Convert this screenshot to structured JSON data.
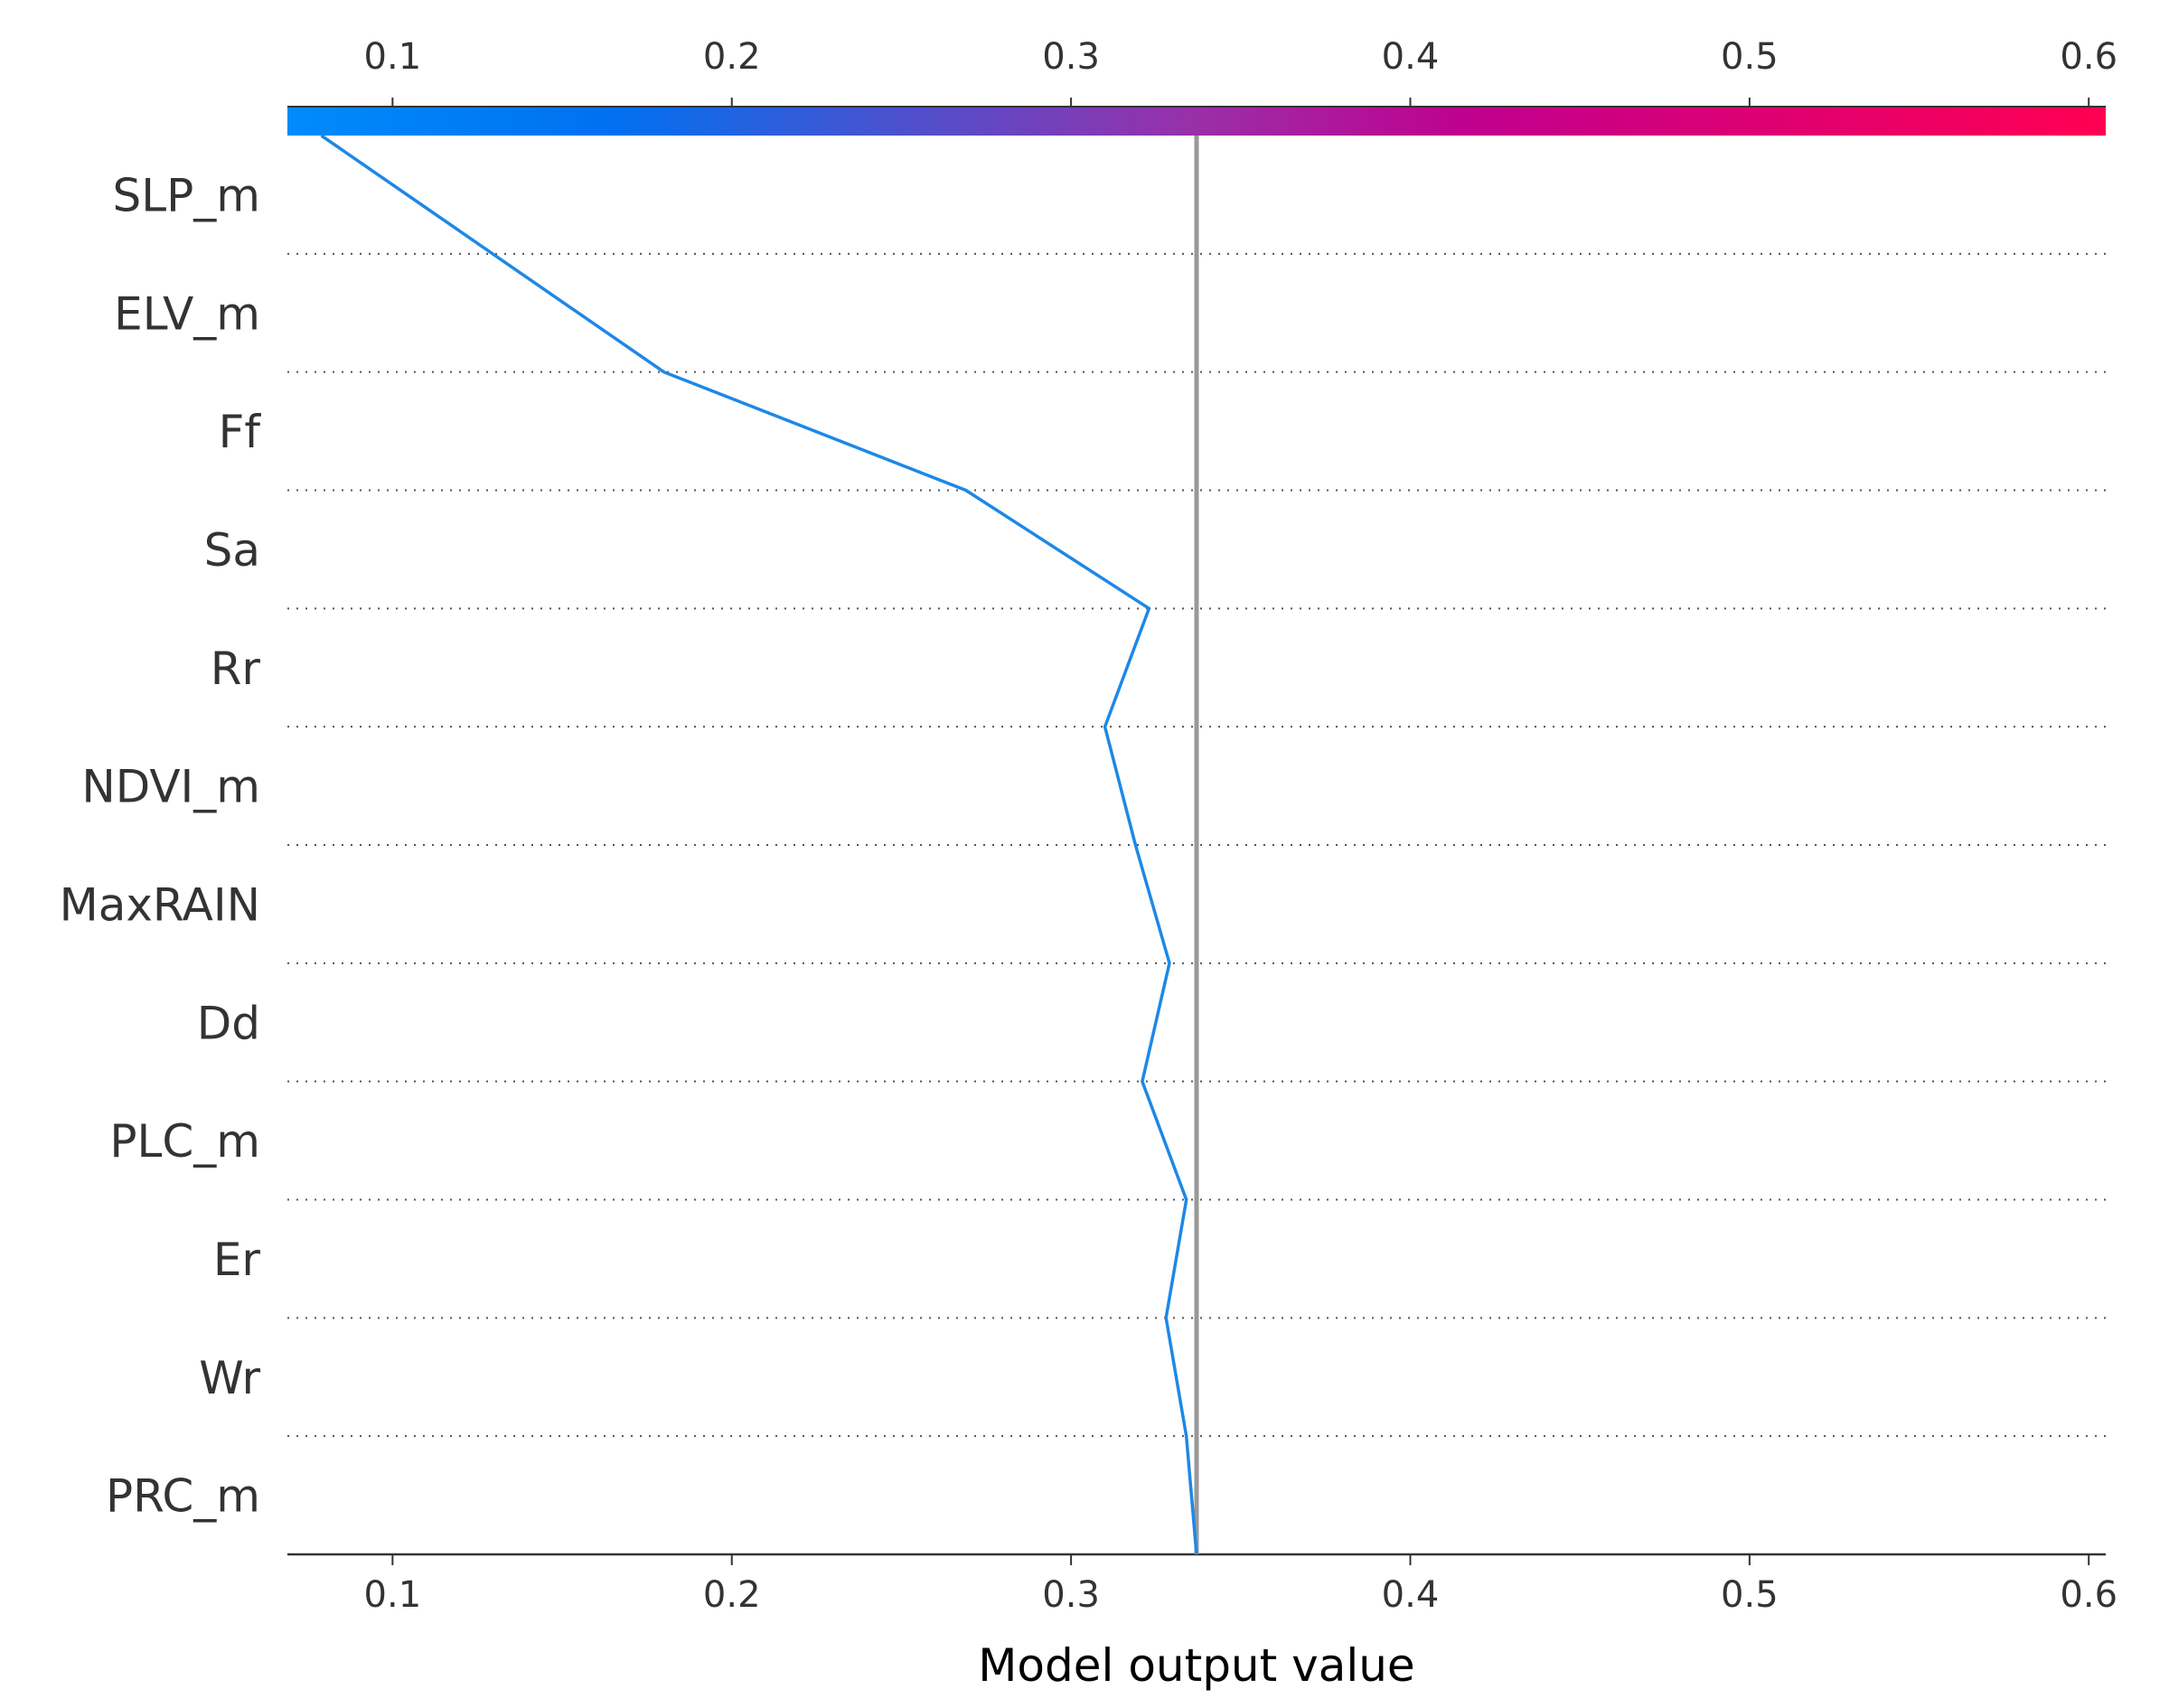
{
  "chart_data": {
    "type": "line",
    "title": "",
    "xlabel": "Model output value",
    "ylabel": "",
    "xlim": [
      0.069,
      0.605
    ],
    "x_ticks": [
      "0.1",
      "0.2",
      "0.3",
      "0.4",
      "0.5",
      "0.6"
    ],
    "x_tick_values": [
      0.1,
      0.2,
      0.3,
      0.4,
      0.5,
      0.6
    ],
    "base_value": 0.337,
    "features": [
      "SLP_m",
      "ELV_m",
      "Ff",
      "Sa",
      "Rr",
      "NDVI_m",
      "MaxRAIN",
      "Dd",
      "PLC_m",
      "Er",
      "Wr",
      "PRC_m"
    ],
    "path_values": [
      0.337,
      0.334,
      0.328,
      0.334,
      0.321,
      0.329,
      0.319,
      0.31,
      0.323,
      0.269,
      0.18,
      0.079
    ],
    "colorbar": {
      "min_color": "#008bfb",
      "mid_color": "#8f2fb0",
      "max_color": "#ff0052"
    },
    "line_color": "#1e88e5",
    "base_line_color": "#999999",
    "grid": "dotted horizontal separators"
  }
}
